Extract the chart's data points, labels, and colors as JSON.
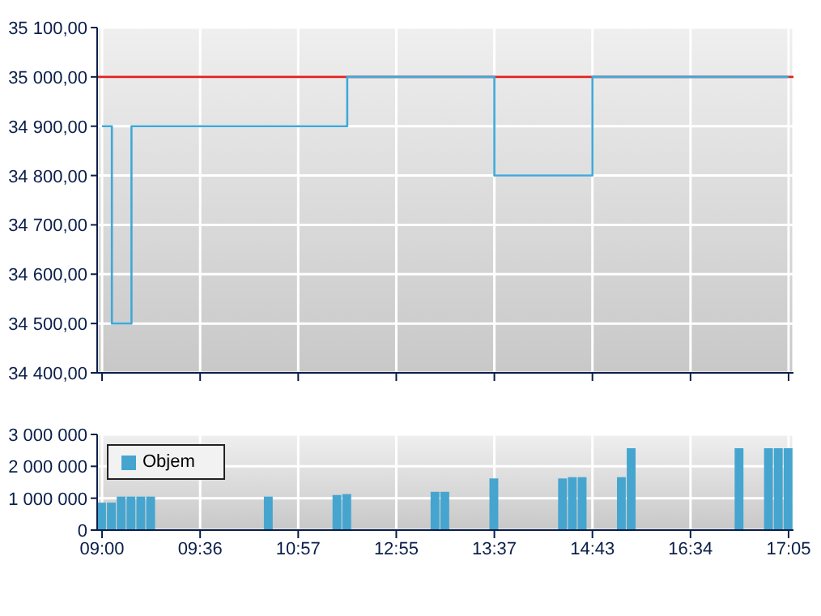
{
  "chart_data": [
    {
      "type": "step",
      "categories": [
        null,
        null,
        null,
        null,
        null,
        null,
        null,
        null,
        null,
        null,
        null,
        null,
        null,
        null,
        null,
        null,
        null,
        null,
        null,
        null,
        null,
        null,
        null,
        null,
        null,
        null,
        null,
        null,
        null,
        null,
        null,
        null,
        null,
        null,
        null,
        null,
        null,
        null,
        null,
        null,
        null,
        null,
        null,
        null,
        null,
        null,
        null,
        null,
        null,
        null,
        null,
        null,
        null,
        null,
        null,
        null,
        null,
        null,
        null,
        null,
        null,
        null,
        null,
        null,
        null,
        null,
        null,
        null,
        null,
        null,
        null
      ],
      "series": [
        {
          "color": "#3fa9d9",
          "values": [
            34900,
            34500,
            34500,
            34900,
            34900,
            34900,
            34900,
            34900,
            34900,
            34900,
            34900,
            34900,
            34900,
            34900,
            34900,
            34900,
            34900,
            34900,
            34900,
            34900,
            34900,
            34900,
            34900,
            34900,
            34900,
            35000,
            35000,
            35000,
            35000,
            35000,
            35000,
            35000,
            35000,
            35000,
            35000,
            35000,
            35000,
            35000,
            35000,
            35000,
            34800,
            34800,
            34800,
            34800,
            34800,
            34800,
            34800,
            34800,
            34800,
            34800,
            35000,
            35000,
            35000,
            35000,
            35000,
            35000,
            35000,
            35000,
            35000,
            35000,
            35000,
            35000,
            35000,
            35000,
            35000,
            35000,
            35000,
            35000,
            35000,
            35000,
            35000
          ]
        }
      ],
      "ylim": [
        34400,
        35100
      ],
      "yticks": [
        {
          "value": 34400,
          "label": "34 400,00"
        },
        {
          "value": 34500,
          "label": "34 500,00"
        },
        {
          "value": 34600,
          "label": "34 600,00"
        },
        {
          "value": 34700,
          "label": "34 700,00"
        },
        {
          "value": 34800,
          "label": "34 800,00"
        },
        {
          "value": 34900,
          "label": "34 900,00"
        },
        {
          "value": 35000,
          "label": "35 000,00"
        },
        {
          "value": 35100,
          "label": "35 100,00"
        }
      ],
      "ref_lines": [
        {
          "axis": "y",
          "value": 35000,
          "color": "#e02020"
        }
      ],
      "grid": true,
      "tick_labels": "y"
    },
    {
      "type": "bar",
      "categories": [
        "09:00",
        null,
        null,
        null,
        null,
        null,
        null,
        null,
        null,
        null,
        "09:36",
        null,
        null,
        null,
        null,
        null,
        null,
        null,
        null,
        null,
        "10:57",
        null,
        null,
        null,
        null,
        null,
        null,
        null,
        null,
        null,
        "12:55",
        null,
        null,
        null,
        null,
        null,
        null,
        null,
        null,
        null,
        "13:37",
        null,
        null,
        null,
        null,
        null,
        null,
        null,
        null,
        null,
        "14:43",
        null,
        null,
        null,
        null,
        null,
        null,
        null,
        null,
        null,
        "16:34",
        null,
        null,
        null,
        null,
        null,
        null,
        null,
        null,
        null,
        "17:05"
      ],
      "series": [
        {
          "name": "Objem",
          "color": "#45a5cf",
          "values": [
            860000,
            860000,
            1050000,
            1050000,
            1050000,
            1050000,
            null,
            null,
            null,
            null,
            null,
            null,
            null,
            null,
            null,
            null,
            null,
            1050000,
            null,
            null,
            null,
            null,
            null,
            null,
            1100000,
            1130000,
            null,
            null,
            null,
            null,
            null,
            null,
            null,
            null,
            1200000,
            1200000,
            null,
            null,
            null,
            null,
            1620000,
            null,
            null,
            null,
            null,
            null,
            null,
            1620000,
            1660000,
            1660000,
            null,
            null,
            null,
            1660000,
            2570000,
            null,
            null,
            null,
            null,
            null,
            null,
            null,
            null,
            null,
            null,
            2570000,
            null,
            null,
            2570000,
            2570000,
            2570000
          ]
        }
      ],
      "ylim": [
        0,
        3000000
      ],
      "yticks": [
        0,
        {
          "value": 1000000,
          "label": "1 000 000"
        },
        {
          "value": 2000000,
          "label": "2 000 000"
        },
        {
          "value": 3000000,
          "label": "3 000 000"
        }
      ],
      "grid": true,
      "legend": "top left"
    }
  ]
}
